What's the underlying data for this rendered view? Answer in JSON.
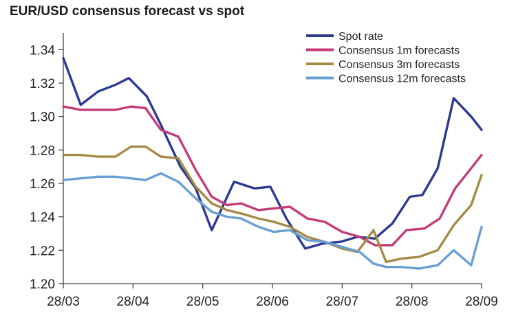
{
  "chart_data": {
    "type": "line",
    "title": "EUR/USD consensus forecast vs spot",
    "xlabel": "",
    "ylabel": "",
    "x_ticks": [
      "28/03",
      "28/04",
      "28/05",
      "28/06",
      "28/07",
      "28/08",
      "28/09"
    ],
    "y_ticks": [
      "1.20",
      "1.22",
      "1.24",
      "1.26",
      "1.28",
      "1.30",
      "1.32",
      "1.34"
    ],
    "xlim": [
      0,
      6
    ],
    "ylim": [
      1.2,
      1.35
    ],
    "grid": false,
    "legend": "top-right",
    "series": [
      {
        "name": "Spot rate",
        "color": "#2b3990",
        "x": [
          0.0,
          0.25,
          0.5,
          0.75,
          0.94,
          1.2,
          1.4,
          1.68,
          1.9,
          2.13,
          2.45,
          2.74,
          2.97,
          3.2,
          3.47,
          3.72,
          3.97,
          4.22,
          4.47,
          4.72,
          4.97,
          5.15,
          5.37,
          5.6,
          5.85,
          6.0
        ],
        "y": [
          1.335,
          1.307,
          1.315,
          1.319,
          1.323,
          1.312,
          1.295,
          1.27,
          1.257,
          1.232,
          1.261,
          1.257,
          1.258,
          1.239,
          1.221,
          1.224,
          1.225,
          1.228,
          1.227,
          1.236,
          1.252,
          1.253,
          1.269,
          1.311,
          1.3,
          1.292
        ]
      },
      {
        "name": "Consensus 1m forecasts",
        "color": "#c43b7a",
        "x": [
          0.0,
          0.25,
          0.5,
          0.75,
          0.97,
          1.18,
          1.4,
          1.65,
          1.9,
          2.13,
          2.35,
          2.55,
          2.8,
          3.02,
          3.25,
          3.5,
          3.75,
          4.0,
          4.25,
          4.47,
          4.72,
          4.92,
          5.18,
          5.4,
          5.62,
          5.85,
          6.0
        ],
        "y": [
          1.306,
          1.304,
          1.304,
          1.304,
          1.306,
          1.305,
          1.292,
          1.288,
          1.268,
          1.252,
          1.247,
          1.248,
          1.244,
          1.245,
          1.246,
          1.239,
          1.237,
          1.231,
          1.228,
          1.223,
          1.223,
          1.232,
          1.233,
          1.239,
          1.257,
          1.269,
          1.277
        ]
      },
      {
        "name": "Consensus 3m forecasts",
        "color": "#a58a45",
        "x": [
          0.0,
          0.25,
          0.5,
          0.75,
          0.97,
          1.18,
          1.4,
          1.65,
          1.9,
          2.13,
          2.35,
          2.55,
          2.8,
          3.02,
          3.25,
          3.5,
          3.75,
          4.0,
          4.22,
          4.45,
          4.63,
          4.85,
          5.1,
          5.37,
          5.6,
          5.85,
          6.0
        ],
        "y": [
          1.277,
          1.277,
          1.276,
          1.276,
          1.282,
          1.282,
          1.276,
          1.275,
          1.258,
          1.248,
          1.244,
          1.242,
          1.239,
          1.237,
          1.234,
          1.228,
          1.225,
          1.221,
          1.219,
          1.232,
          1.213,
          1.215,
          1.216,
          1.22,
          1.235,
          1.247,
          1.265
        ]
      },
      {
        "name": "Consensus 12m forecasts",
        "color": "#6a9fd4",
        "x": [
          0.0,
          0.25,
          0.5,
          0.75,
          0.97,
          1.18,
          1.4,
          1.65,
          1.9,
          2.13,
          2.35,
          2.55,
          2.8,
          3.02,
          3.25,
          3.5,
          3.75,
          4.0,
          4.25,
          4.45,
          4.63,
          4.85,
          5.1,
          5.37,
          5.6,
          5.85,
          6.0
        ],
        "y": [
          1.262,
          1.263,
          1.264,
          1.264,
          1.263,
          1.262,
          1.266,
          1.261,
          1.251,
          1.243,
          1.24,
          1.239,
          1.234,
          1.231,
          1.232,
          1.226,
          1.225,
          1.222,
          1.219,
          1.212,
          1.21,
          1.21,
          1.209,
          1.211,
          1.22,
          1.211,
          1.234
        ]
      }
    ]
  }
}
